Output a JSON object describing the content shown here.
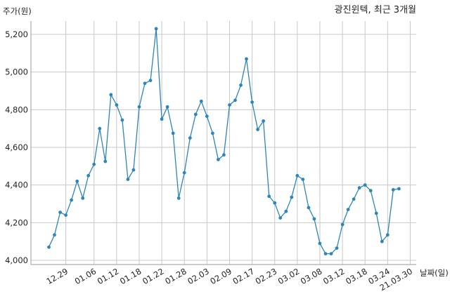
{
  "chart_data": {
    "type": "line",
    "title": "광진윈텍, 최근 3개월",
    "ylabel": "주가(원)",
    "xlabel": "날짜(일)",
    "ylim": [
      4000,
      5300
    ],
    "yticks": [
      4000,
      4200,
      4400,
      4600,
      4800,
      5000,
      5200
    ],
    "ytick_labels": [
      "4,000",
      "4,200",
      "4,400",
      "4,600",
      "4,800",
      "5,000",
      "5,200"
    ],
    "x_tick_labels": [
      "12.29",
      "01.06",
      "01.12",
      "01.18",
      "01.22",
      "01.28",
      "02.03",
      "02.09",
      "02.17",
      "02.23",
      "03.02",
      "03.08",
      "03.12",
      "03.18",
      "03.24",
      "21.03.30"
    ],
    "x_tick_index": [
      3,
      8,
      12,
      16,
      20,
      24,
      28,
      32,
      36,
      40,
      44,
      48,
      52,
      56,
      60,
      64
    ],
    "grid": true,
    "series": [
      {
        "color": "#2e86b8",
        "values": [
          4070,
          4135,
          4255,
          4240,
          4320,
          4420,
          4330,
          4450,
          4510,
          4700,
          4525,
          4880,
          4825,
          4745,
          4430,
          4480,
          4815,
          4940,
          4955,
          5230,
          4750,
          4815,
          4675,
          4330,
          4465,
          4650,
          4775,
          4845,
          4765,
          4675,
          4535,
          4560,
          4825,
          4850,
          4930,
          5070,
          4840,
          4695,
          4740,
          4340,
          4305,
          4225,
          4260,
          4335,
          4450,
          4430,
          4280,
          4220,
          4090,
          4035,
          4035,
          4065,
          4190,
          4270,
          4325,
          4385,
          4400,
          4370,
          4250,
          4100,
          4135,
          4375,
          4380
        ]
      }
    ]
  }
}
